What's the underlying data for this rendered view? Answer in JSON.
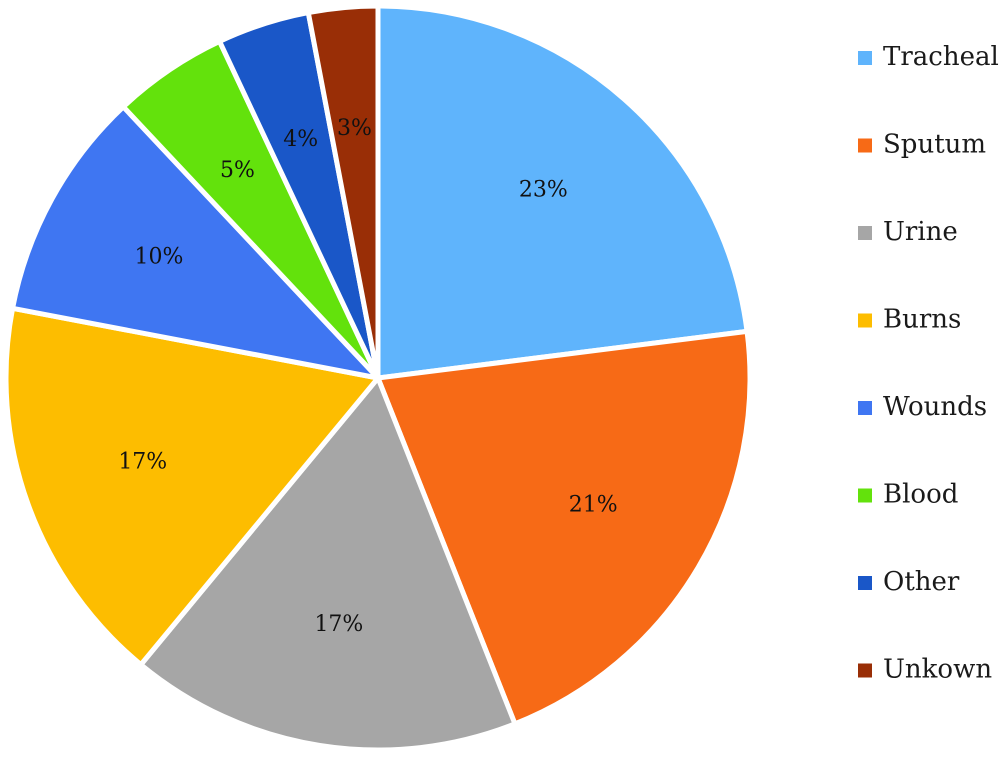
{
  "chart_data": {
    "type": "pie",
    "title": "",
    "legend_position": "right",
    "start_angle_deg": 0,
    "direction": "clockwise",
    "slices": [
      {
        "name": "Tracheal",
        "value": 23,
        "label": "23%",
        "color": "#5fb4fc"
      },
      {
        "name": "Sputum",
        "value": 21,
        "label": "21%",
        "color": "#f76a16"
      },
      {
        "name": "Urine",
        "value": 17,
        "label": "17%",
        "color": "#a6a6a6"
      },
      {
        "name": "Burns",
        "value": 17,
        "label": "17%",
        "color": "#fdbd00"
      },
      {
        "name": "Wounds",
        "value": 10,
        "label": "10%",
        "color": "#3f76f2"
      },
      {
        "name": "Blood",
        "value": 5,
        "label": "5%",
        "color": "#63e20c"
      },
      {
        "name": "Other",
        "value": 4,
        "label": "4%",
        "color": "#1a57c8"
      },
      {
        "name": "Unkown",
        "value": 3,
        "label": "3%",
        "color": "#992e06"
      }
    ]
  }
}
